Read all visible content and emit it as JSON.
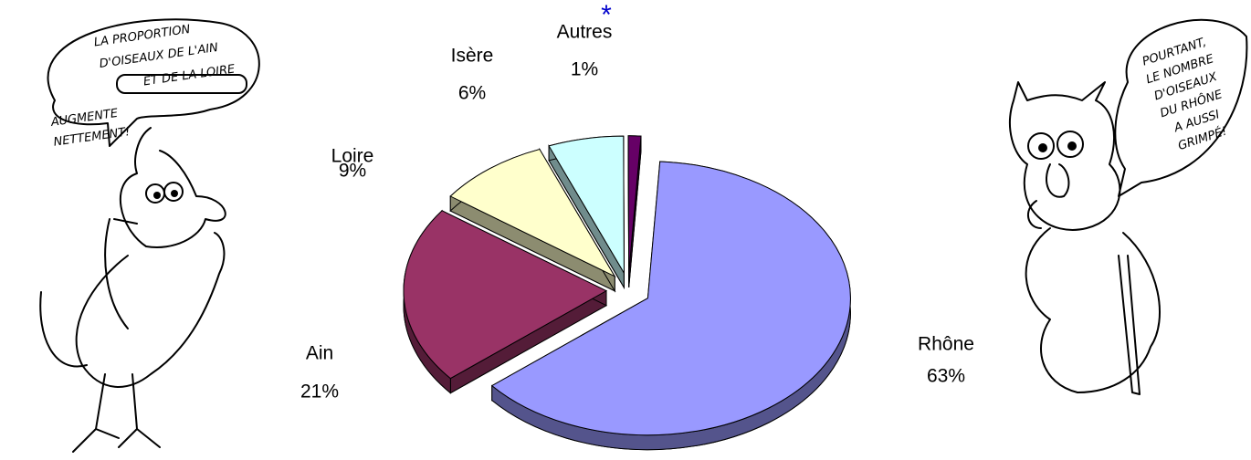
{
  "chart_data": {
    "type": "pie",
    "categories": [
      "Rhône",
      "Ain",
      "Loire",
      "Isère",
      "Autres"
    ],
    "values": [
      63,
      21,
      9,
      6,
      1
    ],
    "value_labels": [
      "63%",
      "21%",
      "9%",
      "6%",
      "1%"
    ],
    "colors": [
      "#9999ff",
      "#993366",
      "#ffffcc",
      "#ccffff",
      "#660066"
    ],
    "annotations": {
      "asterisk": "*",
      "left_bubble": [
        "LA PROPORTION",
        "D'OISEAUX DE L'AIN",
        "ET DE LA LOIRE",
        "AUGMENTE",
        "NETTEMENT!"
      ],
      "right_bubble": [
        "POURTANT,",
        "LE NOMBRE",
        "D'OISEAUX",
        "DU RHÔNE",
        "A AUSSI",
        "GRIMPÉ!"
      ]
    }
  }
}
